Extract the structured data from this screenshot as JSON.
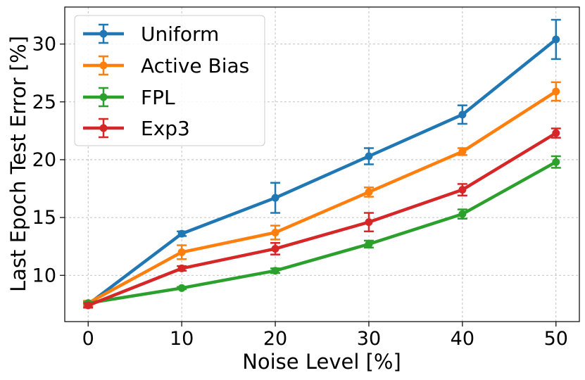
{
  "chart_data": {
    "type": "line",
    "title": "",
    "xlabel": "Noise Level [%]",
    "ylabel": "Last Epoch Test Error [%]",
    "x": [
      0,
      10,
      20,
      30,
      40,
      50
    ],
    "xlim": [
      -2.5,
      52.5
    ],
    "ylim": [
      6.0,
      33.2
    ],
    "xticks": [
      0,
      10,
      20,
      30,
      40,
      50
    ],
    "yticks": [
      10,
      15,
      20,
      25,
      30
    ],
    "grid": true,
    "legend_position": "top-left",
    "series": [
      {
        "name": "Uniform",
        "color": "#1f77b4",
        "values": [
          7.5,
          13.6,
          16.7,
          20.3,
          23.9,
          30.4
        ],
        "errors": [
          0.2,
          0.2,
          1.3,
          0.7,
          0.8,
          1.7
        ]
      },
      {
        "name": "Active Bias",
        "color": "#ff7f0e",
        "values": [
          7.6,
          12.0,
          13.7,
          17.2,
          20.7,
          25.9
        ],
        "errors": [
          0.2,
          0.6,
          0.6,
          0.4,
          0.3,
          0.8
        ]
      },
      {
        "name": "FPL",
        "color": "#2ca02c",
        "values": [
          7.6,
          8.9,
          10.4,
          12.7,
          15.3,
          19.8
        ],
        "errors": [
          0.1,
          0.1,
          0.2,
          0.3,
          0.4,
          0.5
        ]
      },
      {
        "name": "Exp3",
        "color": "#d62728",
        "values": [
          7.4,
          10.6,
          12.3,
          14.6,
          17.4,
          22.3
        ],
        "errors": [
          0.2,
          0.2,
          0.5,
          0.8,
          0.5,
          0.4
        ]
      }
    ]
  }
}
